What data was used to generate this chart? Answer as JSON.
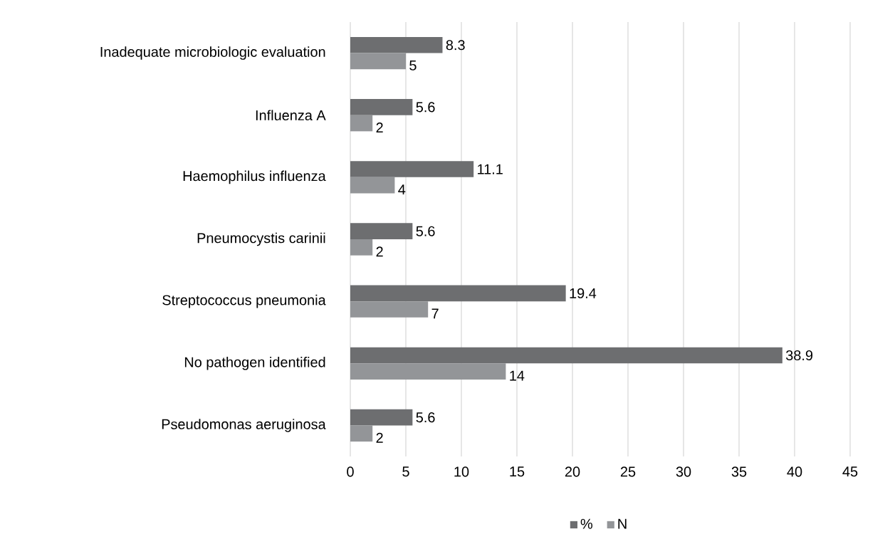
{
  "chart_data": {
    "type": "bar",
    "orientation": "horizontal",
    "categories": [
      "Inadequate microbiologic evaluation",
      "Influenza A",
      "Haemophilus influenza",
      "Pneumocystis carinii",
      "Streptococcus pneumonia",
      "No pathogen identified",
      "Pseudomonas aeruginosa"
    ],
    "series": [
      {
        "name": "%",
        "color": "#6d6e70",
        "values": [
          8.3,
          5.6,
          11.1,
          5.6,
          19.4,
          38.9,
          5.6
        ]
      },
      {
        "name": "N",
        "color": "#939598",
        "values": [
          5,
          2,
          4,
          2,
          7,
          14,
          2
        ]
      }
    ],
    "xlim": [
      0,
      45
    ],
    "xticks": [
      0,
      5,
      10,
      15,
      20,
      25,
      30,
      35,
      40,
      45
    ],
    "grid": "x",
    "legend": "bottom",
    "data_labels": true
  }
}
